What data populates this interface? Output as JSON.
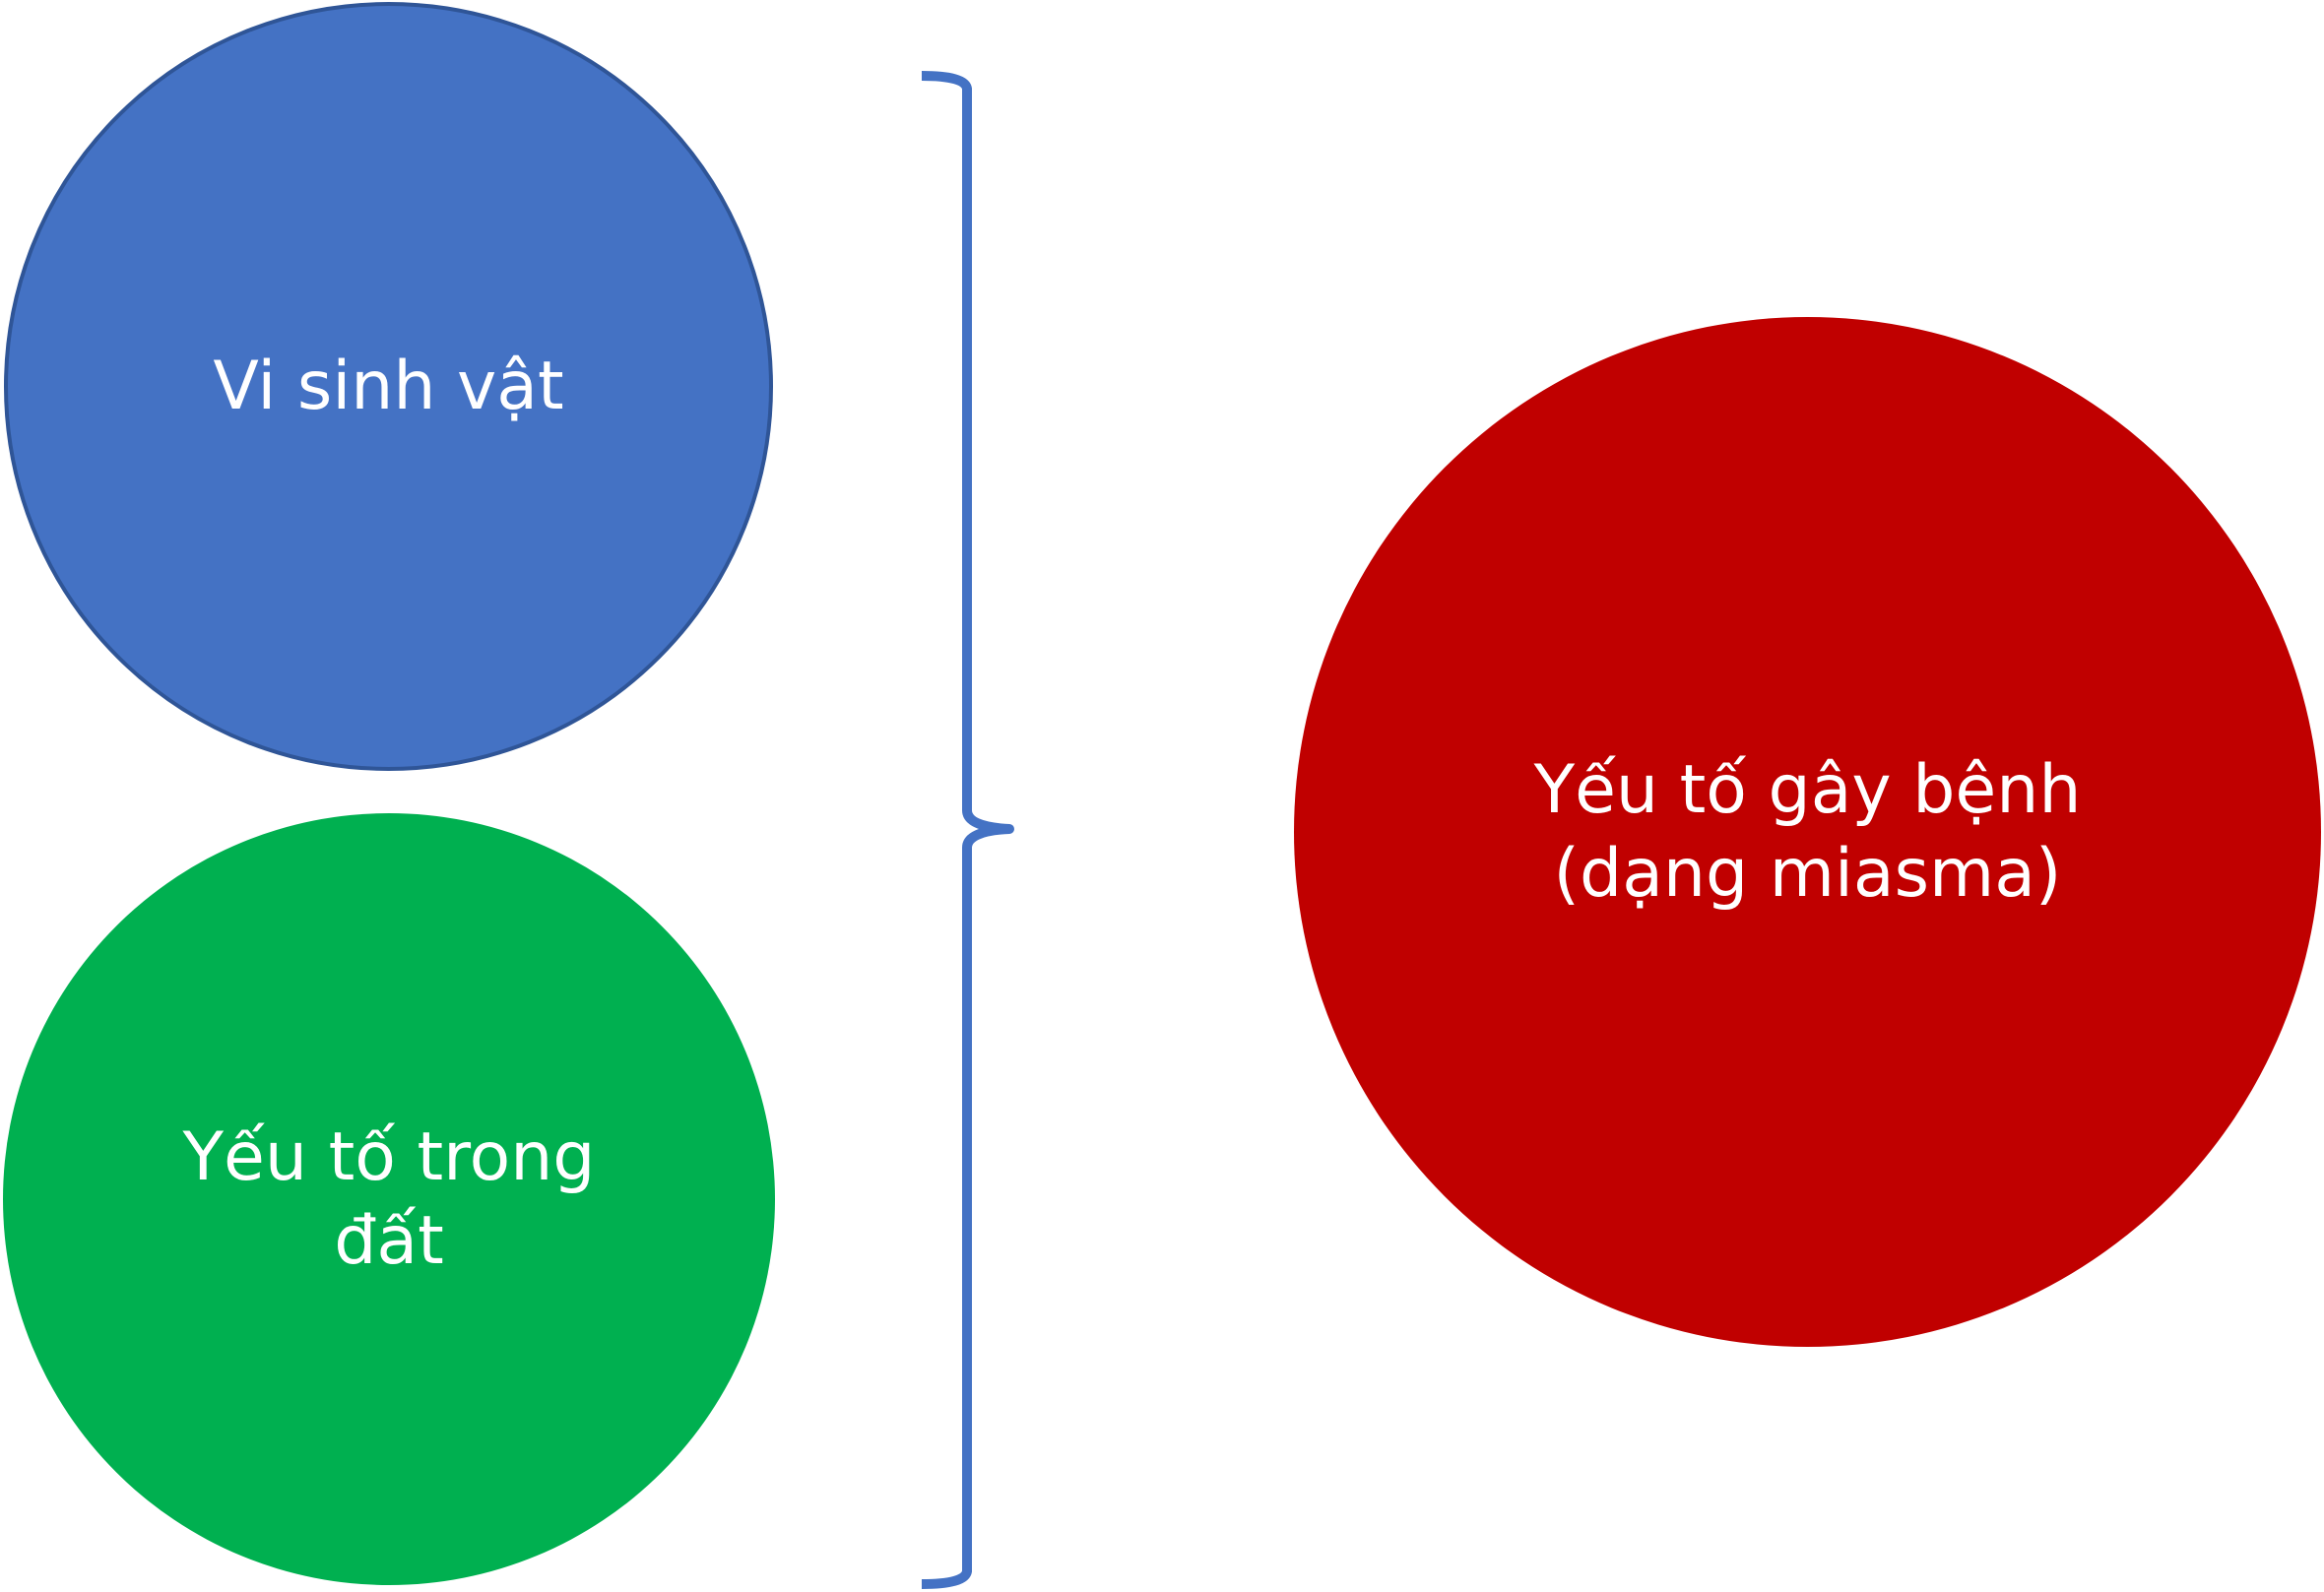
{
  "diagram": {
    "nodes": [
      {
        "id": "micro",
        "label": "Vi sinh vật",
        "color": "#4472c4"
      },
      {
        "id": "soil",
        "label": "Yếu tố trong\nđất",
        "color": "#00b050"
      },
      {
        "id": "pathogen",
        "label": "Yếu tố gây bệnh\n(dạng miasma)",
        "color": "#c00000"
      }
    ],
    "connector": {
      "type": "right-curly-brace",
      "color": "#4472c4",
      "from": [
        "micro",
        "soil"
      ],
      "to": "pathogen"
    }
  }
}
